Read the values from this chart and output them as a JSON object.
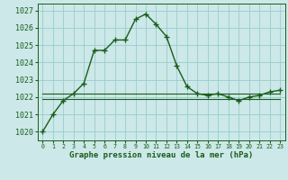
{
  "x": [
    0,
    1,
    2,
    3,
    4,
    5,
    6,
    7,
    8,
    9,
    10,
    11,
    12,
    13,
    14,
    15,
    16,
    17,
    18,
    19,
    20,
    21,
    22,
    23
  ],
  "y_main": [
    1020.0,
    1021.0,
    1021.8,
    1022.2,
    1022.8,
    1024.7,
    1024.7,
    1025.3,
    1025.3,
    1026.5,
    1026.8,
    1026.2,
    1025.5,
    1023.8,
    1022.6,
    1022.2,
    1022.1,
    1022.2,
    1022.0,
    1021.8,
    1022.0,
    1022.1,
    1022.3,
    1022.4
  ],
  "y_flat1": [
    1022.2,
    1022.2,
    1022.2,
    1022.2,
    1022.2,
    1022.2,
    1022.2,
    1022.2,
    1022.2,
    1022.2,
    1022.2,
    1022.2,
    1022.2,
    1022.2,
    1022.2,
    1022.2,
    1022.2,
    1022.2,
    1022.2,
    1022.2,
    1022.2,
    1022.2,
    1022.2,
    1022.2
  ],
  "y_flat2": [
    1021.9,
    1021.9,
    1021.9,
    1021.9,
    1021.9,
    1021.9,
    1021.9,
    1021.9,
    1021.9,
    1021.9,
    1021.9,
    1021.9,
    1021.9,
    1021.9,
    1021.9,
    1021.9,
    1021.9,
    1021.9,
    1021.9,
    1021.9,
    1021.9,
    1021.9,
    1021.9,
    1021.9
  ],
  "line_color": "#1a5c1a",
  "bg_color": "#cce8e8",
  "grid_color": "#99cccc",
  "text_color": "#1a5c1a",
  "ylim": [
    1019.5,
    1027.4
  ],
  "yticks": [
    1020,
    1021,
    1022,
    1023,
    1024,
    1025,
    1026,
    1027
  ],
  "xlabel": "Graphe pression niveau de la mer (hPa)",
  "marker": "+",
  "linewidth": 1.0,
  "markersize": 4
}
